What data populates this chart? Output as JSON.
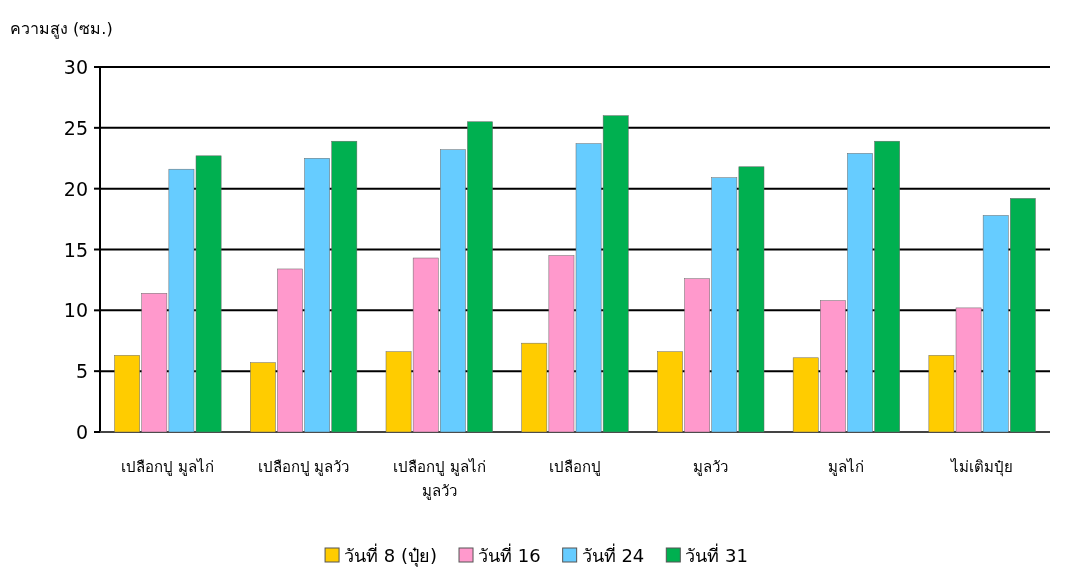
{
  "chart_data": {
    "type": "bar",
    "ylabel": "ความสูง (ซม.)",
    "categories": [
      "เปลือกปู มูลไก่",
      "เปลือกปู มูลวัว",
      "เปลือกปู มูลไก่ มูลวัว",
      "เปลือกปู",
      "มูลวัว",
      "มูลไก่",
      "ไม่เติมปุ๋ย"
    ],
    "series": [
      {
        "name": "วันที่ 8 (ปุ๋ย)",
        "color": "#ffcc00",
        "values": [
          6.3,
          5.7,
          6.6,
          7.3,
          6.6,
          6.1,
          6.3
        ]
      },
      {
        "name": "วันที่ 16",
        "color": "#ff99cc",
        "values": [
          11.4,
          13.4,
          14.3,
          14.5,
          12.6,
          10.8,
          10.2
        ]
      },
      {
        "name": "วันที่ 24",
        "color": "#66ccff",
        "values": [
          21.6,
          22.5,
          23.2,
          23.7,
          20.9,
          22.9,
          17.8
        ]
      },
      {
        "name": "วันที่ 31",
        "color": "#00b050",
        "values": [
          22.7,
          23.9,
          25.5,
          26.0,
          21.8,
          23.9,
          19.2
        ]
      }
    ],
    "ylim": [
      0,
      30
    ],
    "yticks": [
      0,
      5,
      10,
      15,
      20,
      25,
      30
    ],
    "grid": "y",
    "legend": "bottom"
  }
}
